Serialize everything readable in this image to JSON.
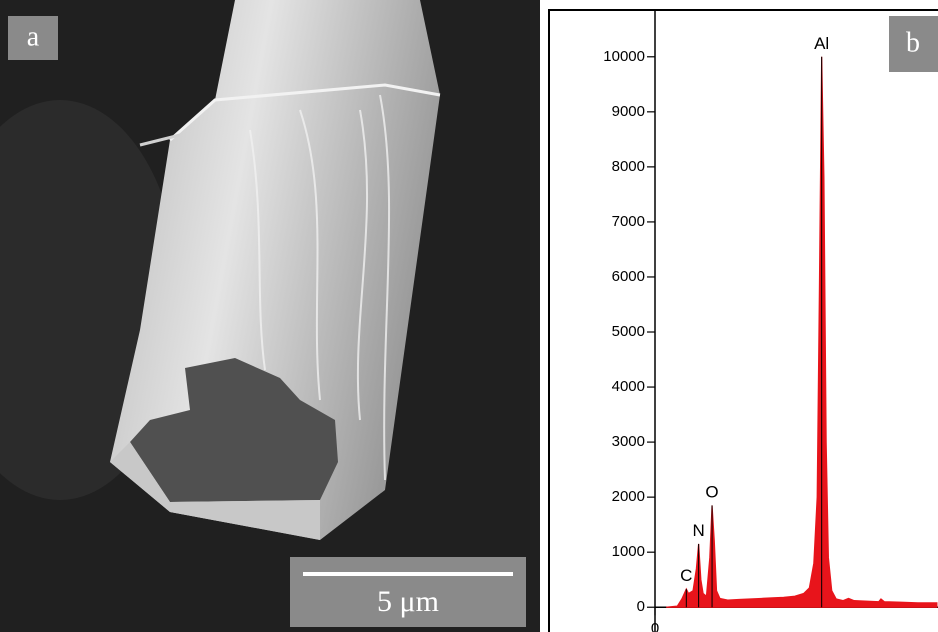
{
  "image_panel": {
    "label": "a",
    "scale_bar": "5 μm"
  },
  "chart_data": {
    "type": "area",
    "label": "b",
    "color": "#e8141b",
    "x": [
      0.1,
      0.2,
      0.24,
      0.28,
      0.3,
      0.34,
      0.37,
      0.39,
      0.41,
      0.43,
      0.46,
      0.49,
      0.51,
      0.53,
      0.55,
      0.58,
      0.65,
      0.75,
      0.85,
      0.95,
      1.05,
      1.15,
      1.25,
      1.33,
      1.38,
      1.42,
      1.45,
      1.47,
      1.49,
      1.51,
      1.53,
      1.55,
      1.58,
      1.62,
      1.68,
      1.73,
      1.78,
      1.9,
      2.0,
      2.02,
      2.05,
      2.2,
      2.35,
      2.52
    ],
    "values": [
      0,
      20,
      150,
      330,
      250,
      300,
      700,
      1150,
      500,
      250,
      200,
      900,
      1850,
      1200,
      300,
      160,
      130,
      140,
      150,
      160,
      170,
      180,
      200,
      250,
      350,
      800,
      2000,
      5800,
      10000,
      7800,
      3000,
      900,
      300,
      150,
      120,
      160,
      120,
      110,
      100,
      150,
      100,
      90,
      80,
      80
    ],
    "xlim": [
      0,
      2.53
    ],
    "xticks": [
      0
    ],
    "ylim": [
      -450,
      10850
    ],
    "yticks": [
      0,
      1000,
      2000,
      3000,
      4000,
      5000,
      6000,
      7000,
      8000,
      9000,
      10000
    ],
    "annotations": [
      {
        "text": "C",
        "x": 0.28
      },
      {
        "text": "N",
        "x": 0.39
      },
      {
        "text": "O",
        "x": 0.51
      },
      {
        "text": "Al",
        "x": 1.49
      }
    ]
  }
}
